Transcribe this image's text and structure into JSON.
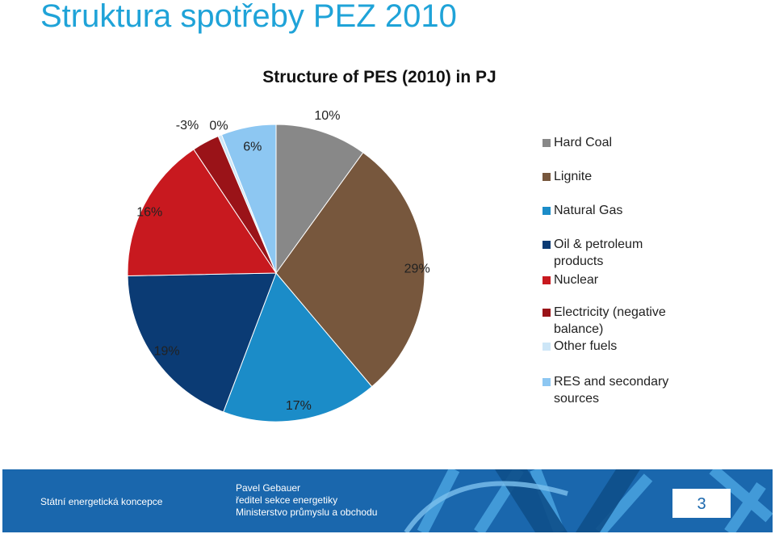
{
  "slide": {
    "title": "Struktura spotřeby PEZ 2010"
  },
  "chart_data": {
    "type": "pie",
    "title": "Structure of PES (2010) in PJ",
    "legend_position": "right",
    "slices": [
      {
        "name": "Hard Coal",
        "value": 10,
        "label": "10%",
        "color": "#888888"
      },
      {
        "name": "Lignite",
        "value": 29,
        "label": "29%",
        "color": "#77573d"
      },
      {
        "name": "Natural Gas",
        "value": 17,
        "label": "17%",
        "color": "#1b8cc8"
      },
      {
        "name": "Oil & petroleum products",
        "value": 19,
        "label": "19%",
        "color": "#0b3b74"
      },
      {
        "name": "Nuclear",
        "value": 16,
        "label": "16%",
        "color": "#c8191f"
      },
      {
        "name": "Electricity (negative balance)",
        "value": 3,
        "label": "-3%",
        "color": "#9a1318"
      },
      {
        "name": "Other fuels",
        "value": 0.4,
        "label": "0%",
        "color": "#cde6f7"
      },
      {
        "name": "RES and secondary sources",
        "value": 6,
        "label": "6%",
        "color": "#8dc7f2"
      }
    ]
  },
  "footer": {
    "left": "Státní energetická koncepce",
    "author_name": "Pavel Gebauer",
    "author_role": "ředitel sekce energetiky",
    "author_org": "Ministerstvo  průmyslu a obchodu",
    "page": "3"
  }
}
